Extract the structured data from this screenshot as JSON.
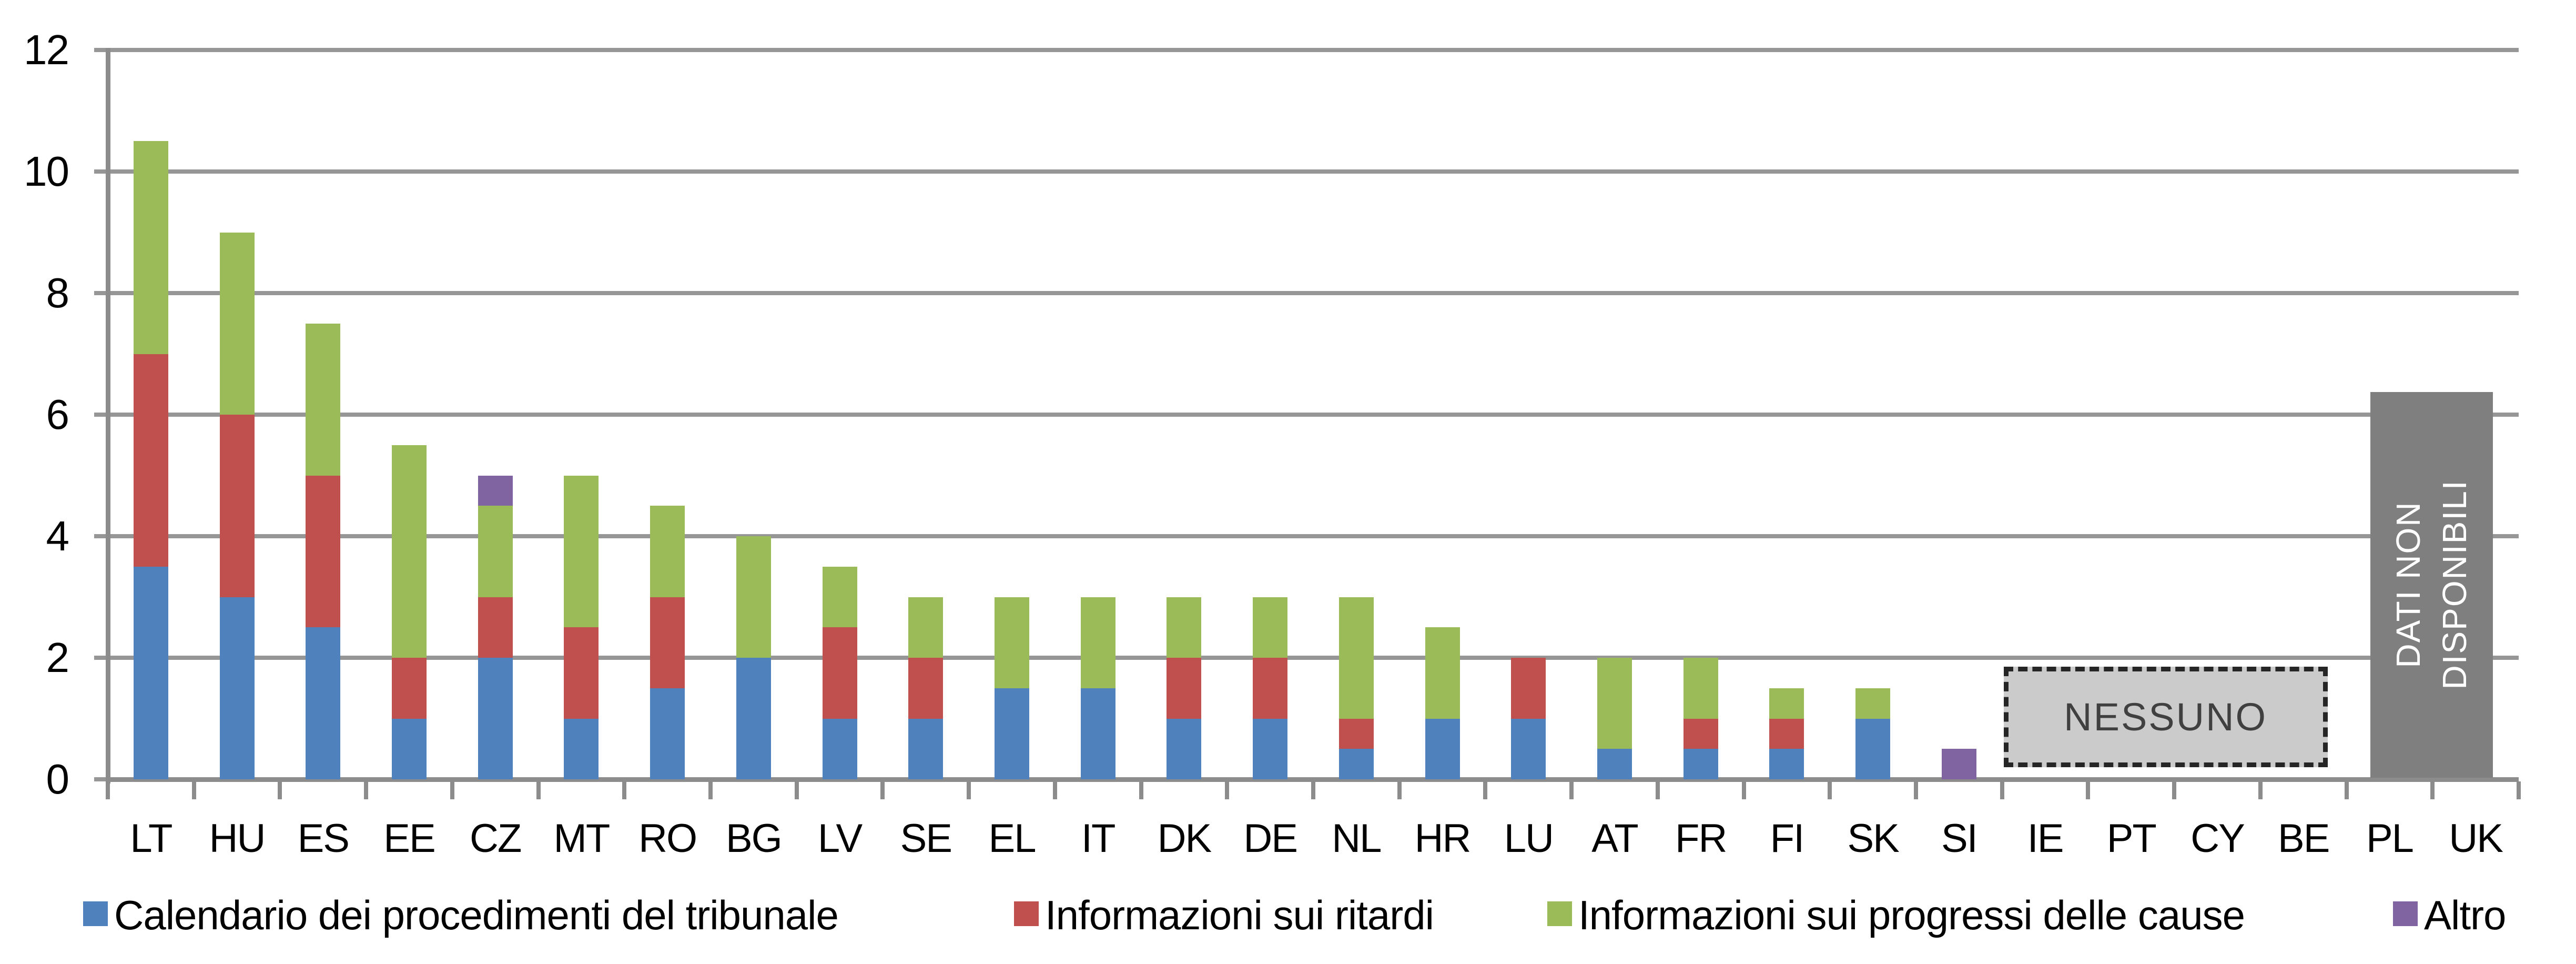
{
  "chart_data": {
    "type": "bar",
    "stacked": true,
    "grid": true,
    "legend_position": "bottom",
    "ylim": [
      0,
      12
    ],
    "yticks": [
      0,
      2,
      4,
      6,
      8,
      10,
      12
    ],
    "xlabel": "",
    "ylabel": "",
    "categories": [
      "LT",
      "HU",
      "ES",
      "EE",
      "CZ",
      "MT",
      "RO",
      "BG",
      "LV",
      "SE",
      "EL",
      "IT",
      "DK",
      "DE",
      "NL",
      "HR",
      "LU",
      "AT",
      "FR",
      "FI",
      "SK",
      "SI",
      "IE",
      "PT",
      "CY",
      "BE",
      "PL",
      "UK"
    ],
    "series": [
      {
        "name": "Calendario dei procedimenti del tribunale",
        "color": "#4F81BD",
        "values": [
          3.5,
          3,
          2.5,
          1,
          2,
          1,
          1.5,
          2,
          1,
          1,
          1.5,
          1.5,
          1,
          1,
          0.5,
          1,
          1,
          0.5,
          0.5,
          0.5,
          1,
          0,
          0,
          0,
          0,
          0,
          0,
          0
        ]
      },
      {
        "name": "Informazioni sui ritardi",
        "color": "#C0504D",
        "values": [
          3.5,
          3,
          2.5,
          1,
          1,
          1.5,
          1.5,
          0,
          1.5,
          1,
          0,
          0,
          1,
          1,
          0.5,
          0,
          1,
          0,
          0.5,
          0.5,
          0,
          0,
          0,
          0,
          0,
          0,
          0,
          0
        ]
      },
      {
        "name": "Informazioni sui progressi delle cause",
        "color": "#9BBB59",
        "values": [
          3.5,
          3,
          2.5,
          3.5,
          1.5,
          2.5,
          1.5,
          2,
          1,
          1,
          1.5,
          1.5,
          1,
          1,
          2,
          1.5,
          0,
          1.5,
          1,
          0.5,
          0.5,
          0,
          0,
          0,
          0,
          0,
          0,
          0
        ]
      },
      {
        "name": "Altro",
        "color": "#8064A2",
        "values": [
          0,
          0,
          0,
          0,
          0.5,
          0,
          0,
          0,
          0,
          0,
          0,
          0,
          0,
          0,
          0,
          0,
          0,
          0,
          0,
          0,
          0,
          0.5,
          0,
          0,
          0,
          0,
          0,
          0
        ]
      }
    ],
    "annotations": [
      {
        "id": "nessuno",
        "label": "NESSUNO",
        "span_categories": [
          "IE",
          "PT",
          "CY",
          "BE"
        ],
        "fill": "#CBCBCB",
        "border_style": "dashed",
        "text_color": "#404040",
        "value_bottom": 0.2,
        "value_top": 1.85
      },
      {
        "id": "dati-non-disponibili",
        "label_lines": [
          "DATI NON",
          "DISPONIBILI"
        ],
        "span_categories": [
          "PL",
          "UK"
        ],
        "fill": "#7F7F7F",
        "text_color": "#FFFFFF",
        "value_bottom": 0.03,
        "value_top": 6.37
      }
    ],
    "colors": {
      "gridline": "#969696",
      "axis": "#8C8C8C",
      "tick_label": "#000000",
      "legend_text": "#000000"
    }
  }
}
